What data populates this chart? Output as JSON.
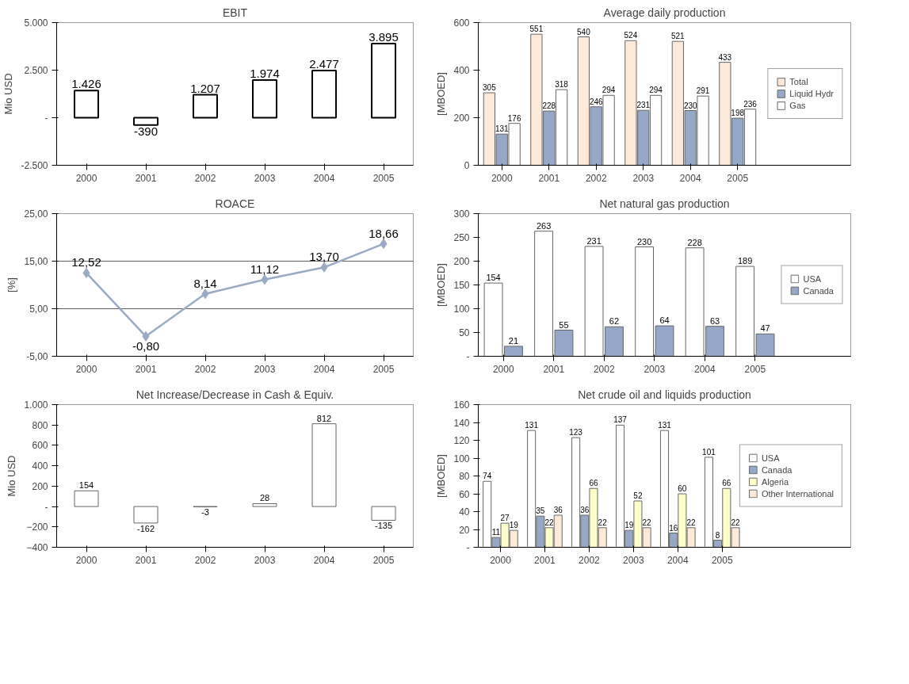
{
  "chart_data": [
    {
      "type": "bar",
      "title": "EBIT",
      "ylabel": "Mio USD",
      "categories": [
        "2000",
        "2001",
        "2002",
        "2003",
        "2004",
        "2005"
      ],
      "series": [
        {
          "color": "#ffffff",
          "values": [
            1426,
            -390,
            1207,
            1974,
            2477,
            3895
          ],
          "value_labels": [
            "1.426",
            "-390",
            "1.207",
            "1.974",
            "2.477",
            "3.895"
          ]
        }
      ],
      "ylim": [
        -2500,
        5000
      ],
      "yticks": [
        {
          "value": -2500,
          "label": "-2.500"
        },
        {
          "value": 0,
          "label": "-"
        },
        {
          "value": 2500,
          "label": "2.500"
        },
        {
          "value": 5000,
          "label": "5.000"
        }
      ],
      "grid": false,
      "legend": false
    },
    {
      "type": "line",
      "title": "ROACE",
      "ylabel": "[%]",
      "categories": [
        "2000",
        "2001",
        "2002",
        "2003",
        "2004",
        "2005"
      ],
      "series": [
        {
          "color": "#9aaac4",
          "values": [
            12.52,
            -0.8,
            8.14,
            11.12,
            13.7,
            18.66
          ],
          "value_labels": [
            "12,52",
            "-0,80",
            "8,14",
            "11,12",
            "13,70",
            "18,66"
          ]
        }
      ],
      "ylim": [
        -5,
        25
      ],
      "yticks": [
        {
          "value": -5,
          "label": "-5,00"
        },
        {
          "value": 5,
          "label": "5,00"
        },
        {
          "value": 15,
          "label": "15,00"
        },
        {
          "value": 25,
          "label": "25,00"
        }
      ],
      "grid": "y",
      "marker": "diamond",
      "line_style": "solid",
      "legend": false
    },
    {
      "type": "bar",
      "title": "Net Increase/Decrease in Cash & Equiv.",
      "ylabel": "Mio USD",
      "categories": [
        "2000",
        "2001",
        "2002",
        "2003",
        "2004",
        "2005"
      ],
      "series": [
        {
          "color": "#ffffff",
          "values": [
            154,
            -162,
            -3,
            28,
            812,
            -135
          ],
          "value_labels": [
            "154",
            "-162",
            "-3",
            "28",
            "812",
            "-135"
          ]
        }
      ],
      "ylim": [
        -400,
        1000
      ],
      "yticks": [
        -400,
        -200,
        {
          "value": 0,
          "label": "-"
        },
        200,
        400,
        600,
        800,
        {
          "value": 1000,
          "label": "1.000"
        }
      ],
      "grid": false,
      "legend": false
    },
    {
      "type": "bar",
      "title": "Average daily production",
      "ylabel": "[MBOED]",
      "categories": [
        "2000",
        "2001",
        "2002",
        "2003",
        "2004",
        "2005"
      ],
      "series": [
        {
          "name": "Total",
          "color": "#fde9d9",
          "values": [
            305,
            551,
            540,
            524,
            521,
            433
          ]
        },
        {
          "name": "Liquid Hydr",
          "color": "#95a8c8",
          "values": [
            131,
            228,
            246,
            231,
            230,
            198
          ]
        },
        {
          "name": "Gas",
          "color": "#ffffff",
          "values": [
            176,
            318,
            294,
            294,
            291,
            236
          ]
        }
      ],
      "ylim": [
        0,
        600
      ],
      "yticks": [
        0,
        200,
        400,
        600
      ],
      "grid": false,
      "legend": "right",
      "data_labels": true
    },
    {
      "type": "bar",
      "title": "Net natural gas production",
      "ylabel": "[MBOED]",
      "categories": [
        "2000",
        "2001",
        "2002",
        "2003",
        "2004",
        "2005"
      ],
      "series": [
        {
          "name": "USA",
          "color": "#ffffff",
          "values": [
            154,
            263,
            231,
            230,
            228,
            189
          ]
        },
        {
          "name": "Canada",
          "color": "#95a8c8",
          "values": [
            21,
            55,
            62,
            64,
            63,
            47
          ]
        }
      ],
      "ylim": [
        0,
        300
      ],
      "yticks": [
        {
          "value": 0,
          "label": "-"
        },
        50,
        100,
        150,
        200,
        250,
        300
      ],
      "grid": false,
      "legend": "right",
      "data_labels": true
    },
    {
      "type": "bar",
      "title": "Net crude oil and liquids production",
      "ylabel": "[MBOED]",
      "categories": [
        "2000",
        "2001",
        "2002",
        "2003",
        "2004",
        "2005"
      ],
      "series": [
        {
          "name": "USA",
          "color": "#ffffff",
          "values": [
            74,
            131,
            123,
            137,
            131,
            101
          ]
        },
        {
          "name": "Canada",
          "color": "#95a8c8",
          "values": [
            11,
            35,
            36,
            19,
            16,
            8
          ]
        },
        {
          "name": "Algeria",
          "color": "#ffffcc",
          "values": [
            27,
            22,
            66,
            52,
            60,
            66
          ]
        },
        {
          "name": "Other International",
          "color": "#fde9d9",
          "values": [
            19,
            36,
            22,
            22,
            22,
            22
          ]
        }
      ],
      "ylim": [
        0,
        160
      ],
      "yticks": [
        {
          "value": 0,
          "label": "-"
        },
        20,
        40,
        60,
        80,
        100,
        120,
        140,
        160
      ],
      "grid": false,
      "legend": "right",
      "data_labels": true
    }
  ]
}
